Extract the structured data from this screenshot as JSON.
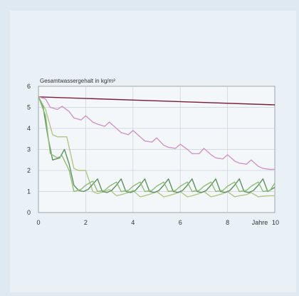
{
  "chart_data": {
    "type": "line",
    "title": "Gesamtwassergehalt in kg/m³",
    "xlabel": "Jahre",
    "ylabel": "",
    "xlim": [
      0,
      10
    ],
    "ylim": [
      0,
      6
    ],
    "x_ticks": [
      0,
      2,
      4,
      6,
      8,
      10
    ],
    "y_ticks": [
      0,
      1,
      2,
      3,
      4,
      5,
      6
    ],
    "grid": true,
    "series": [
      {
        "color": "#7a1e3c",
        "x": [
          0,
          10
        ],
        "y": [
          5.5,
          5.12
        ]
      },
      {
        "color": "#cf97c3",
        "x": [
          0,
          0.3,
          0.5,
          0.8,
          1.0,
          1.3,
          1.5,
          1.8,
          2.0,
          2.3,
          2.5,
          2.8,
          3.0,
          3.3,
          3.5,
          3.8,
          4.0,
          4.3,
          4.5,
          4.8,
          5.0,
          5.3,
          5.5,
          5.8,
          6.0,
          6.3,
          6.5,
          6.8,
          7.0,
          7.3,
          7.5,
          7.8,
          8.0,
          8.3,
          8.5,
          8.8,
          9.0,
          9.3,
          9.5,
          9.8,
          10.0
        ],
        "y": [
          5.5,
          5.4,
          5.0,
          4.9,
          5.05,
          4.8,
          4.5,
          4.4,
          4.6,
          4.3,
          4.2,
          4.1,
          4.3,
          4.0,
          3.8,
          3.7,
          3.9,
          3.6,
          3.4,
          3.35,
          3.55,
          3.2,
          3.1,
          3.05,
          3.25,
          3.0,
          2.8,
          2.8,
          3.05,
          2.75,
          2.6,
          2.55,
          2.75,
          2.45,
          2.35,
          2.3,
          2.5,
          2.2,
          2.1,
          2.05,
          2.05
        ]
      },
      {
        "color": "#b3c688",
        "x": [
          0,
          0.3,
          0.6,
          0.8,
          1.2,
          1.5,
          1.7,
          2.0,
          2.3,
          2.5,
          2.8,
          3.0,
          3.3,
          3.5,
          3.8,
          4.0,
          4.3,
          4.5,
          4.8,
          5.0,
          5.3,
          5.5,
          5.8,
          6.0,
          6.3,
          6.5,
          6.8,
          7.0,
          7.3,
          7.5,
          7.8,
          8.0,
          8.3,
          8.5,
          8.8,
          9.0,
          9.3,
          9.5,
          9.8,
          10.0
        ],
        "y": [
          5.5,
          4.9,
          3.7,
          3.6,
          3.6,
          2.1,
          2.0,
          2.0,
          1.0,
          0.9,
          1.0,
          1.1,
          0.8,
          0.85,
          0.95,
          1.05,
          0.75,
          0.8,
          0.9,
          1.0,
          0.75,
          0.8,
          0.9,
          1.0,
          0.75,
          0.8,
          0.9,
          1.0,
          0.75,
          0.8,
          0.9,
          1.0,
          0.75,
          0.8,
          0.85,
          0.95,
          0.75,
          0.78,
          0.8,
          0.8
        ]
      },
      {
        "color": "#5e9160",
        "x": [
          0,
          0.2,
          0.4,
          0.6,
          0.9,
          1.1,
          1.3,
          1.5,
          1.7,
          1.9,
          2.1,
          2.3,
          2.5,
          2.7,
          2.9,
          3.1,
          3.3,
          3.5,
          3.7,
          3.9,
          4.1,
          4.3,
          4.5,
          4.7,
          4.9,
          5.1,
          5.3,
          5.5,
          5.7,
          5.9,
          6.1,
          6.3,
          6.5,
          6.7,
          6.9,
          7.1,
          7.3,
          7.5,
          7.7,
          7.9,
          8.1,
          8.3,
          8.5,
          8.7,
          8.9,
          9.1,
          9.3,
          9.5,
          9.7,
          10.0
        ],
        "y": [
          5.5,
          5.0,
          3.6,
          2.5,
          2.6,
          3.0,
          2.3,
          1.3,
          1.05,
          1.0,
          1.1,
          1.35,
          1.6,
          1.0,
          0.95,
          1.05,
          1.3,
          1.6,
          1.0,
          0.95,
          1.05,
          1.3,
          1.6,
          1.0,
          0.95,
          1.05,
          1.3,
          1.6,
          1.0,
          0.95,
          1.05,
          1.3,
          1.6,
          1.0,
          0.95,
          1.05,
          1.3,
          1.6,
          1.0,
          0.95,
          1.05,
          1.3,
          1.6,
          1.0,
          0.95,
          1.05,
          1.3,
          1.6,
          1.0,
          1.2
        ]
      },
      {
        "color": "#8fbb74",
        "x": [
          0,
          0.3,
          0.5,
          0.8,
          1.0,
          1.3,
          1.5,
          1.8,
          2.0,
          2.3,
          2.5,
          2.8,
          3.0,
          3.3,
          3.5,
          3.8,
          4.0,
          4.3,
          4.5,
          4.8,
          5.0,
          5.3,
          5.5,
          5.8,
          6.0,
          6.3,
          6.5,
          6.8,
          7.0,
          7.3,
          7.5,
          7.8,
          8.0,
          8.3,
          8.5,
          8.8,
          9.0,
          9.3,
          9.5,
          9.8,
          10.0
        ],
        "y": [
          5.5,
          4.6,
          2.8,
          2.6,
          2.7,
          2.0,
          1.0,
          1.1,
          1.3,
          1.5,
          1.0,
          1.05,
          1.25,
          1.45,
          1.0,
          1.05,
          1.25,
          1.45,
          1.0,
          1.05,
          1.25,
          1.45,
          1.0,
          1.05,
          1.25,
          1.45,
          1.0,
          1.05,
          1.25,
          1.45,
          1.0,
          1.05,
          1.25,
          1.45,
          1.0,
          1.05,
          1.25,
          1.45,
          1.0,
          1.05,
          1.4
        ]
      }
    ]
  }
}
